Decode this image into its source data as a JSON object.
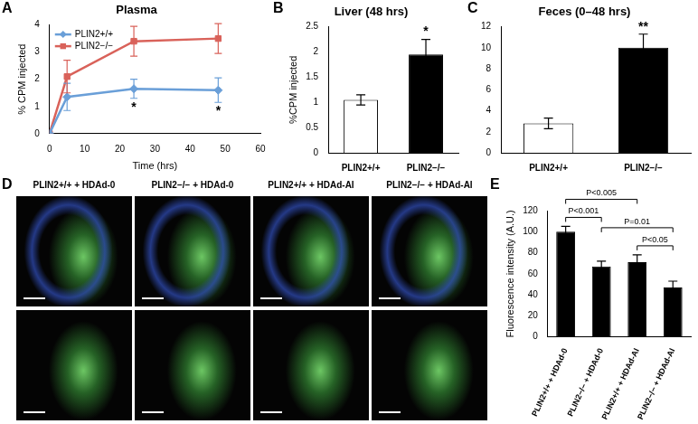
{
  "chart_data": [
    {
      "panel": "A",
      "type": "line",
      "title": "Plasma",
      "x_label": "Time (hrs)",
      "y_label": "% CPM injected",
      "x": [
        0,
        5,
        24,
        48
      ],
      "xlim": [
        0,
        60
      ],
      "xticks": [
        0,
        10,
        20,
        30,
        40,
        50,
        60
      ],
      "ylim": [
        0,
        4
      ],
      "yticks": [
        0,
        1,
        2,
        3,
        4
      ],
      "grid": false,
      "legend": "upper left",
      "series": [
        {
          "name": "PLIN2+/+",
          "color": "#6a9fd8",
          "marker": "diamond",
          "values": [
            0,
            1.35,
            1.65,
            1.6
          ],
          "errors": [
            0,
            0.5,
            0.35,
            0.45
          ]
        },
        {
          "name": "PLIN2−/−",
          "color": "#d9625a",
          "marker": "square",
          "values": [
            0,
            2.1,
            3.4,
            3.5
          ],
          "errors": [
            0,
            0.6,
            0.55,
            0.55
          ]
        }
      ],
      "significance": [
        null,
        null,
        "*",
        "*"
      ]
    },
    {
      "panel": "B",
      "type": "bar",
      "title": "Liver (48 hrs)",
      "y_label": "%CPM injected",
      "categories": [
        "PLIN2+/+",
        "PLIN2−/−"
      ],
      "values": [
        1.05,
        1.95
      ],
      "errors": [
        0.1,
        0.3
      ],
      "colors": [
        "#ffffff",
        "#000000"
      ],
      "ylim": [
        0,
        2.5
      ],
      "yticks": [
        0,
        0.5,
        1,
        1.5,
        2,
        2.5
      ],
      "grid": false,
      "significance": [
        null,
        "*"
      ]
    },
    {
      "panel": "C",
      "type": "bar",
      "title": "Feces (0–48 hrs)",
      "categories": [
        "PLIN2+/+",
        "PLIN2−/−"
      ],
      "values": [
        2.8,
        10.0
      ],
      "errors": [
        0.5,
        1.3
      ],
      "colors": [
        "#ffffff",
        "#000000"
      ],
      "ylim": [
        0,
        12
      ],
      "yticks": [
        0,
        2,
        4,
        6,
        8,
        10,
        12
      ],
      "grid": false,
      "significance": [
        null,
        "**"
      ]
    },
    {
      "panel": "E",
      "type": "bar",
      "y_label": "Fluorescence intensity (A.U.)",
      "categories": [
        "PLIN2+/+ + HDAd-0",
        "PLIN2−/− + HDAd-0",
        "PLIN2+/+ + HDAd-AI",
        "PLIN2−/− + HDAd-AI"
      ],
      "values": [
        100,
        67,
        71,
        47
      ],
      "errors": [
        5,
        5,
        7,
        6
      ],
      "color": "#000000",
      "ylim": [
        0,
        120
      ],
      "yticks": [
        0,
        20,
        40,
        60,
        80,
        100,
        120
      ],
      "grid": false,
      "comparisons": [
        {
          "from": 0,
          "to": 1,
          "label": "P<0.001"
        },
        {
          "from": 0,
          "to": 2,
          "label": "P<0.005"
        },
        {
          "from": 1,
          "to": 3,
          "label": "P=0.01"
        },
        {
          "from": 2,
          "to": 3,
          "label": "P<0.05"
        }
      ]
    }
  ],
  "images": {
    "panel": "D",
    "captions": [
      "PLIN2+/+ + HDAd-0",
      "PLIN2−/− + HDAd-0",
      "PLIN2+/+ + HDAd-AI",
      "PLIN2−/− + HDAd-AI"
    ]
  }
}
